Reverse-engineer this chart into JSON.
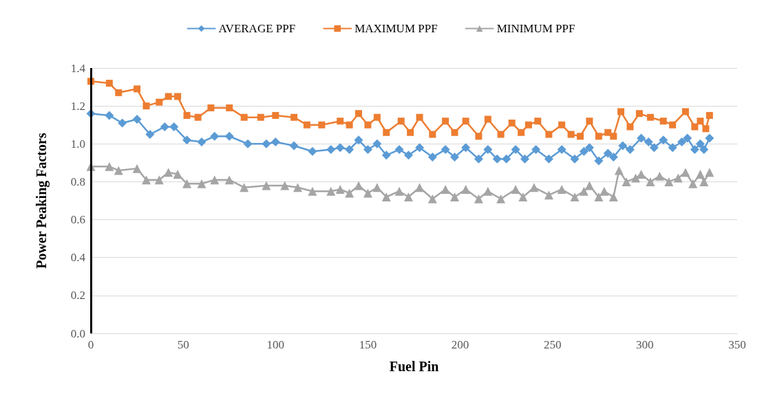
{
  "chart_data": {
    "type": "line",
    "xlabel": "Fuel Pin",
    "ylabel": "Power Peaking Factors",
    "xlim": [
      0,
      350
    ],
    "xticks": [
      0,
      50,
      100,
      150,
      200,
      250,
      300,
      350
    ],
    "ylim": [
      0,
      1.4
    ],
    "yticks": [
      {
        "value": 0,
        "label": "0.0"
      },
      {
        "value": 0.2,
        "label": "0.2"
      },
      {
        "value": 0.4,
        "label": "0.4"
      },
      {
        "value": 0.6,
        "label": "0.6"
      },
      {
        "value": 0.8,
        "label": "0.8"
      },
      {
        "value": 1,
        "label": "1.0"
      },
      {
        "value": 1.2,
        "label": "1.2"
      },
      {
        "value": 1.4,
        "label": "1.4"
      }
    ],
    "grid": "y",
    "legend": "top",
    "series": [
      {
        "name": "AVERAGE PPF",
        "color": "#5b9bd5",
        "marker": "diamond",
        "x": [
          0,
          10,
          17,
          25,
          32,
          40,
          45,
          52,
          60,
          67,
          75,
          85,
          95,
          100,
          110,
          120,
          130,
          135,
          140,
          145,
          150,
          155,
          160,
          167,
          172,
          178,
          185,
          192,
          197,
          203,
          210,
          215,
          220,
          225,
          230,
          235,
          241,
          248,
          255,
          262,
          267,
          270,
          275,
          280,
          283,
          288,
          292,
          298,
          302,
          305,
          310,
          315,
          320,
          323,
          327,
          330,
          332,
          335
        ],
        "values": [
          1.16,
          1.15,
          1.11,
          1.13,
          1.05,
          1.09,
          1.09,
          1.02,
          1.01,
          1.04,
          1.04,
          1.0,
          1.0,
          1.01,
          0.99,
          0.96,
          0.97,
          0.98,
          0.97,
          1.02,
          0.97,
          1.0,
          0.94,
          0.97,
          0.94,
          0.98,
          0.93,
          0.97,
          0.93,
          0.98,
          0.92,
          0.97,
          0.92,
          0.92,
          0.97,
          0.92,
          0.97,
          0.92,
          0.97,
          0.92,
          0.96,
          0.98,
          0.91,
          0.95,
          0.93,
          0.99,
          0.97,
          1.03,
          1.01,
          0.98,
          1.02,
          0.98,
          1.01,
          1.03,
          0.97,
          1.0,
          0.97,
          1.03
        ]
      },
      {
        "name": "MAXIMUM PPF",
        "color": "#ed7d31",
        "marker": "square",
        "x": [
          0,
          10,
          15,
          25,
          30,
          37,
          42,
          47,
          52,
          58,
          65,
          75,
          83,
          92,
          100,
          110,
          117,
          125,
          135,
          140,
          145,
          150,
          155,
          160,
          168,
          173,
          178,
          185,
          192,
          197,
          203,
          210,
          215,
          222,
          228,
          233,
          237,
          242,
          248,
          255,
          260,
          265,
          270,
          275,
          280,
          283,
          287,
          292,
          297,
          303,
          310,
          315,
          322,
          327,
          330,
          333,
          335
        ],
        "values": [
          1.33,
          1.32,
          1.27,
          1.29,
          1.2,
          1.22,
          1.25,
          1.25,
          1.15,
          1.14,
          1.19,
          1.19,
          1.14,
          1.14,
          1.15,
          1.14,
          1.1,
          1.1,
          1.12,
          1.1,
          1.16,
          1.1,
          1.14,
          1.06,
          1.12,
          1.06,
          1.14,
          1.05,
          1.12,
          1.06,
          1.12,
          1.04,
          1.13,
          1.05,
          1.11,
          1.06,
          1.1,
          1.12,
          1.05,
          1.1,
          1.05,
          1.04,
          1.12,
          1.04,
          1.06,
          1.04,
          1.17,
          1.09,
          1.16,
          1.14,
          1.12,
          1.1,
          1.17,
          1.09,
          1.12,
          1.08,
          1.15
        ]
      },
      {
        "name": "MINIMUM PPF",
        "color": "#a5a5a5",
        "marker": "triangle",
        "x": [
          0,
          10,
          15,
          25,
          30,
          37,
          42,
          47,
          52,
          60,
          67,
          75,
          83,
          95,
          105,
          112,
          120,
          130,
          135,
          140,
          145,
          150,
          155,
          160,
          167,
          172,
          178,
          185,
          192,
          197,
          203,
          210,
          215,
          222,
          230,
          234,
          240,
          248,
          255,
          262,
          267,
          270,
          275,
          278,
          283,
          286,
          290,
          295,
          298,
          303,
          308,
          313,
          318,
          322,
          326,
          330,
          332,
          335
        ],
        "values": [
          0.88,
          0.88,
          0.86,
          0.87,
          0.81,
          0.81,
          0.85,
          0.84,
          0.79,
          0.79,
          0.81,
          0.81,
          0.77,
          0.78,
          0.78,
          0.77,
          0.75,
          0.75,
          0.76,
          0.74,
          0.78,
          0.74,
          0.77,
          0.72,
          0.75,
          0.72,
          0.77,
          0.71,
          0.76,
          0.72,
          0.76,
          0.71,
          0.75,
          0.71,
          0.76,
          0.72,
          0.77,
          0.73,
          0.76,
          0.72,
          0.75,
          0.78,
          0.72,
          0.75,
          0.72,
          0.86,
          0.8,
          0.82,
          0.84,
          0.8,
          0.83,
          0.8,
          0.82,
          0.85,
          0.79,
          0.84,
          0.8,
          0.85
        ]
      }
    ]
  }
}
